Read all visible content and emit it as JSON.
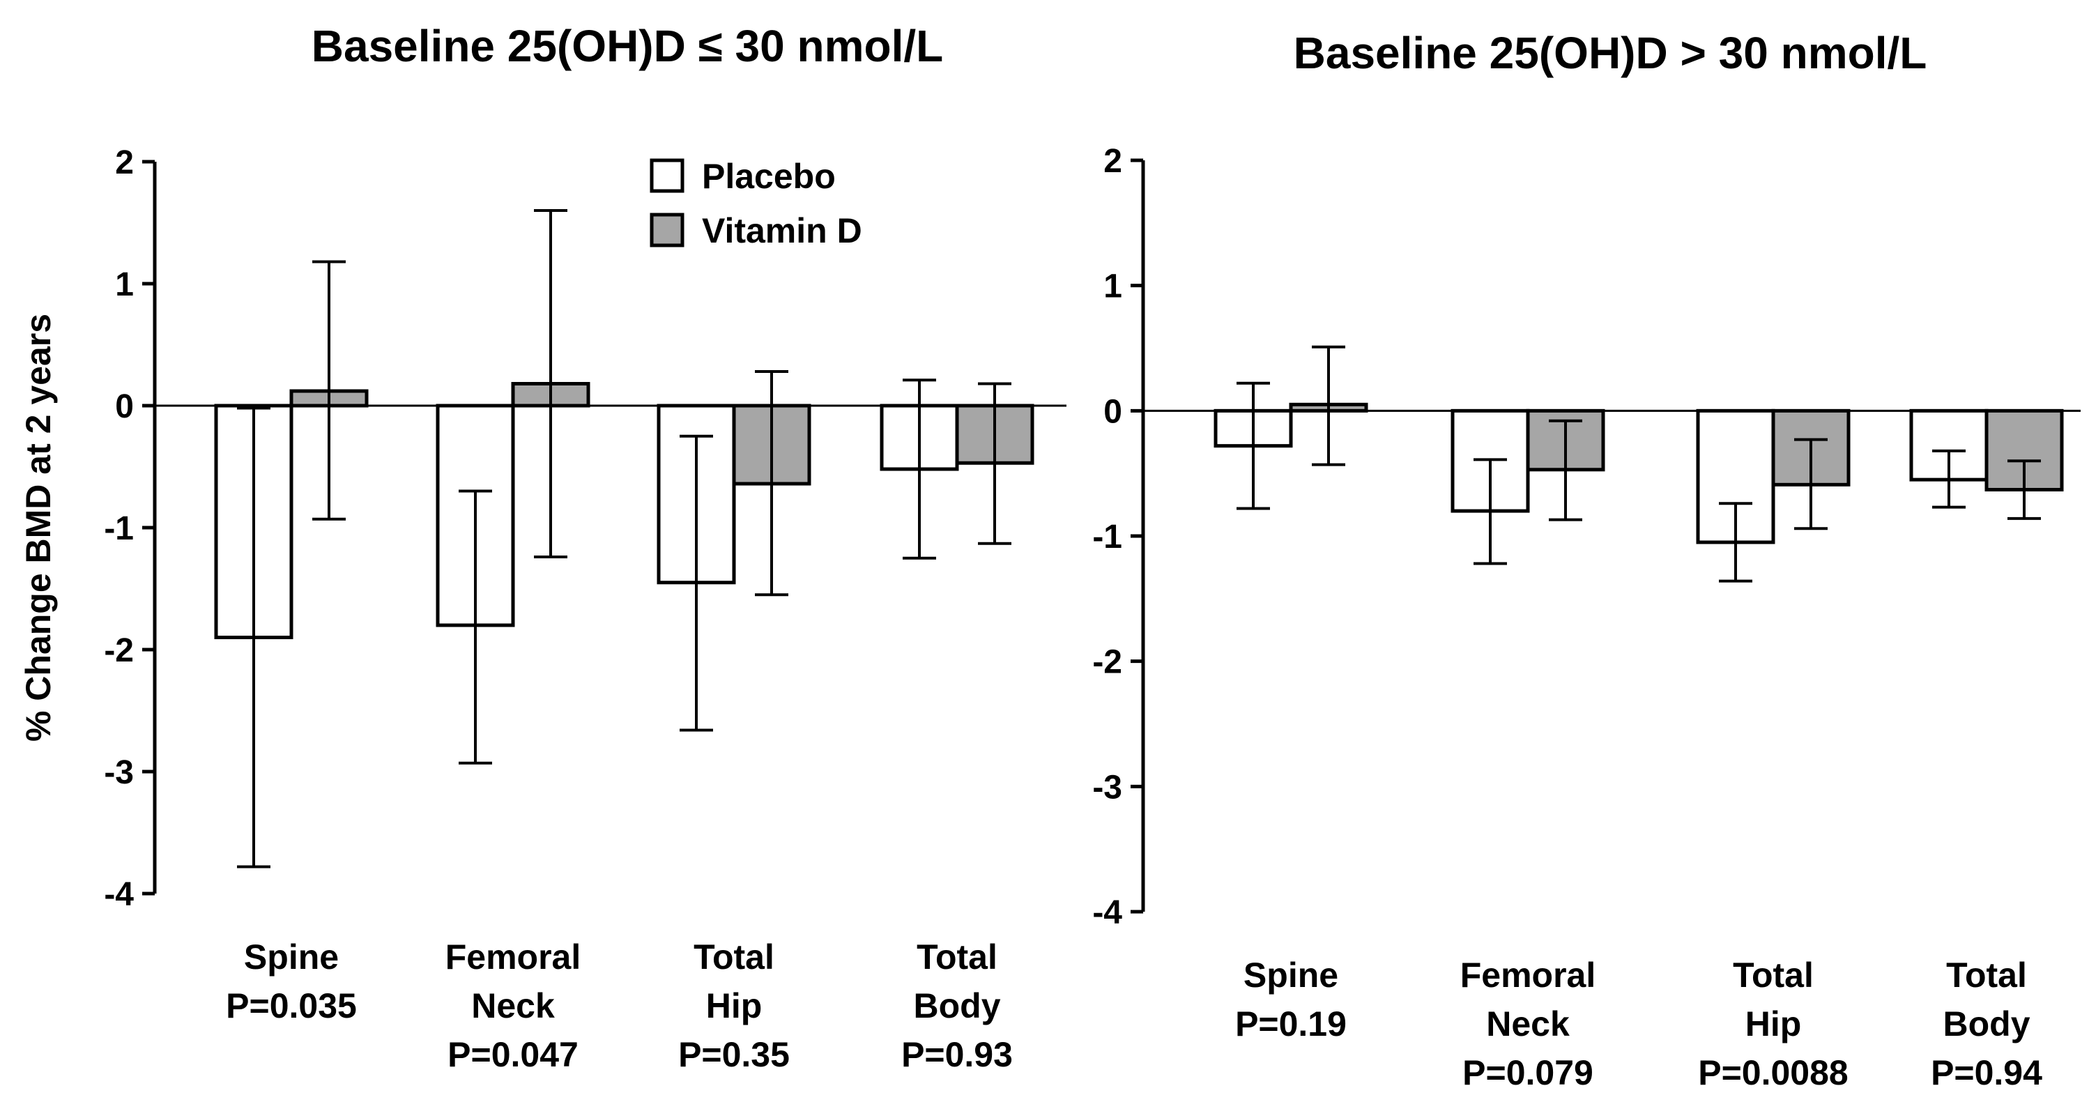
{
  "chart_data": [
    {
      "type": "bar",
      "title": "Baseline 25(OH)D ≤ 30 nmol/L",
      "ylabel": "% Change BMD at 2 years",
      "xlabel": "",
      "ylim": [
        -4,
        2
      ],
      "yticks": [
        2,
        1,
        0,
        -1,
        -2,
        -3,
        -4
      ],
      "legend_position": "top-center",
      "grid": false,
      "categories": [
        {
          "lines": [
            "Spine"
          ],
          "p": "P=0.035"
        },
        {
          "lines": [
            "Femoral",
            "Neck"
          ],
          "p": "P=0.047"
        },
        {
          "lines": [
            "Total",
            "Hip"
          ],
          "p": "P=0.35"
        },
        {
          "lines": [
            "Total",
            "Body"
          ],
          "p": "P=0.93"
        }
      ],
      "series": [
        {
          "name": "Placebo",
          "color": "#ffffff",
          "values": [
            -1.9,
            -1.8,
            -1.45,
            -0.52
          ],
          "err_low": [
            -3.78,
            -2.93,
            -2.66,
            -1.25
          ],
          "err_high": [
            -0.02,
            -0.7,
            -0.25,
            0.21
          ]
        },
        {
          "name": "Vitamin D",
          "color": "#a6a6a6",
          "values": [
            0.12,
            0.18,
            -0.64,
            -0.47
          ],
          "err_low": [
            -0.93,
            -1.24,
            -1.55,
            -1.13
          ],
          "err_high": [
            1.18,
            1.6,
            0.28,
            0.18
          ]
        }
      ]
    },
    {
      "type": "bar",
      "title": "Baseline 25(OH)D > 30 nmol/L",
      "ylabel": "",
      "xlabel": "",
      "ylim": [
        -4,
        2
      ],
      "yticks": [
        2,
        1,
        0,
        -1,
        -2,
        -3,
        -4
      ],
      "grid": false,
      "categories": [
        {
          "lines": [
            "Spine"
          ],
          "p": "P=0.19"
        },
        {
          "lines": [
            "Femoral",
            "Neck"
          ],
          "p": "P=0.079"
        },
        {
          "lines": [
            "Total",
            "Hip"
          ],
          "p": "P=0.0088"
        },
        {
          "lines": [
            "Total",
            "Body"
          ],
          "p": "P=0.94"
        }
      ],
      "series": [
        {
          "name": "Placebo",
          "color": "#ffffff",
          "values": [
            -0.28,
            -0.8,
            -1.05,
            -0.55
          ],
          "err_low": [
            -0.78,
            -1.22,
            -1.36,
            -0.77
          ],
          "err_high": [
            0.22,
            -0.39,
            -0.74,
            -0.32
          ]
        },
        {
          "name": "Vitamin D",
          "color": "#a6a6a6",
          "values": [
            0.05,
            -0.47,
            -0.59,
            -0.63
          ],
          "err_low": [
            -0.43,
            -0.87,
            -0.94,
            -0.86
          ],
          "err_high": [
            0.51,
            -0.08,
            -0.23,
            -0.4
          ]
        }
      ]
    }
  ]
}
